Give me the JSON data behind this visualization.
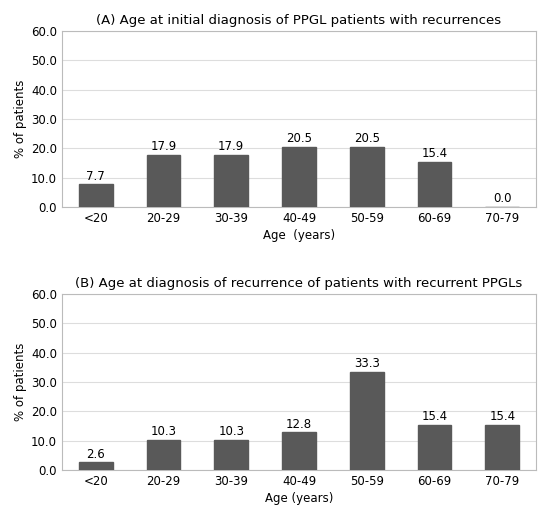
{
  "chart_A": {
    "title": "(A) Age at initial diagnosis of PPGL patients with recurrences",
    "categories": [
      "<20",
      "20-29",
      "30-39",
      "40-49",
      "50-59",
      "60-69",
      "70-79"
    ],
    "values": [
      7.7,
      17.9,
      17.9,
      20.5,
      20.5,
      15.4,
      0.0
    ],
    "xlabel": "Age  (years)",
    "ylabel": "% of patients",
    "ylim": [
      0,
      60
    ],
    "yticks": [
      0.0,
      10.0,
      20.0,
      30.0,
      40.0,
      50.0,
      60.0
    ]
  },
  "chart_B": {
    "title": "(B) Age at diagnosis of recurrence of patients with recurrent PPGLs",
    "categories": [
      "<20",
      "20-29",
      "30-39",
      "40-49",
      "50-59",
      "60-69",
      "70-79"
    ],
    "values": [
      2.6,
      10.3,
      10.3,
      12.8,
      33.3,
      15.4,
      15.4
    ],
    "xlabel": "Age (years)",
    "ylabel": "% of patients",
    "ylim": [
      0,
      60
    ],
    "yticks": [
      0.0,
      10.0,
      20.0,
      30.0,
      40.0,
      50.0,
      60.0
    ]
  },
  "background_color": "#ffffff",
  "bar_color": "#595959",
  "label_fontsize": 8.5,
  "title_fontsize": 9.5,
  "tick_fontsize": 8.5,
  "bar_width": 0.5,
  "spine_color": "#bbbbbb",
  "grid_color": "#dddddd"
}
